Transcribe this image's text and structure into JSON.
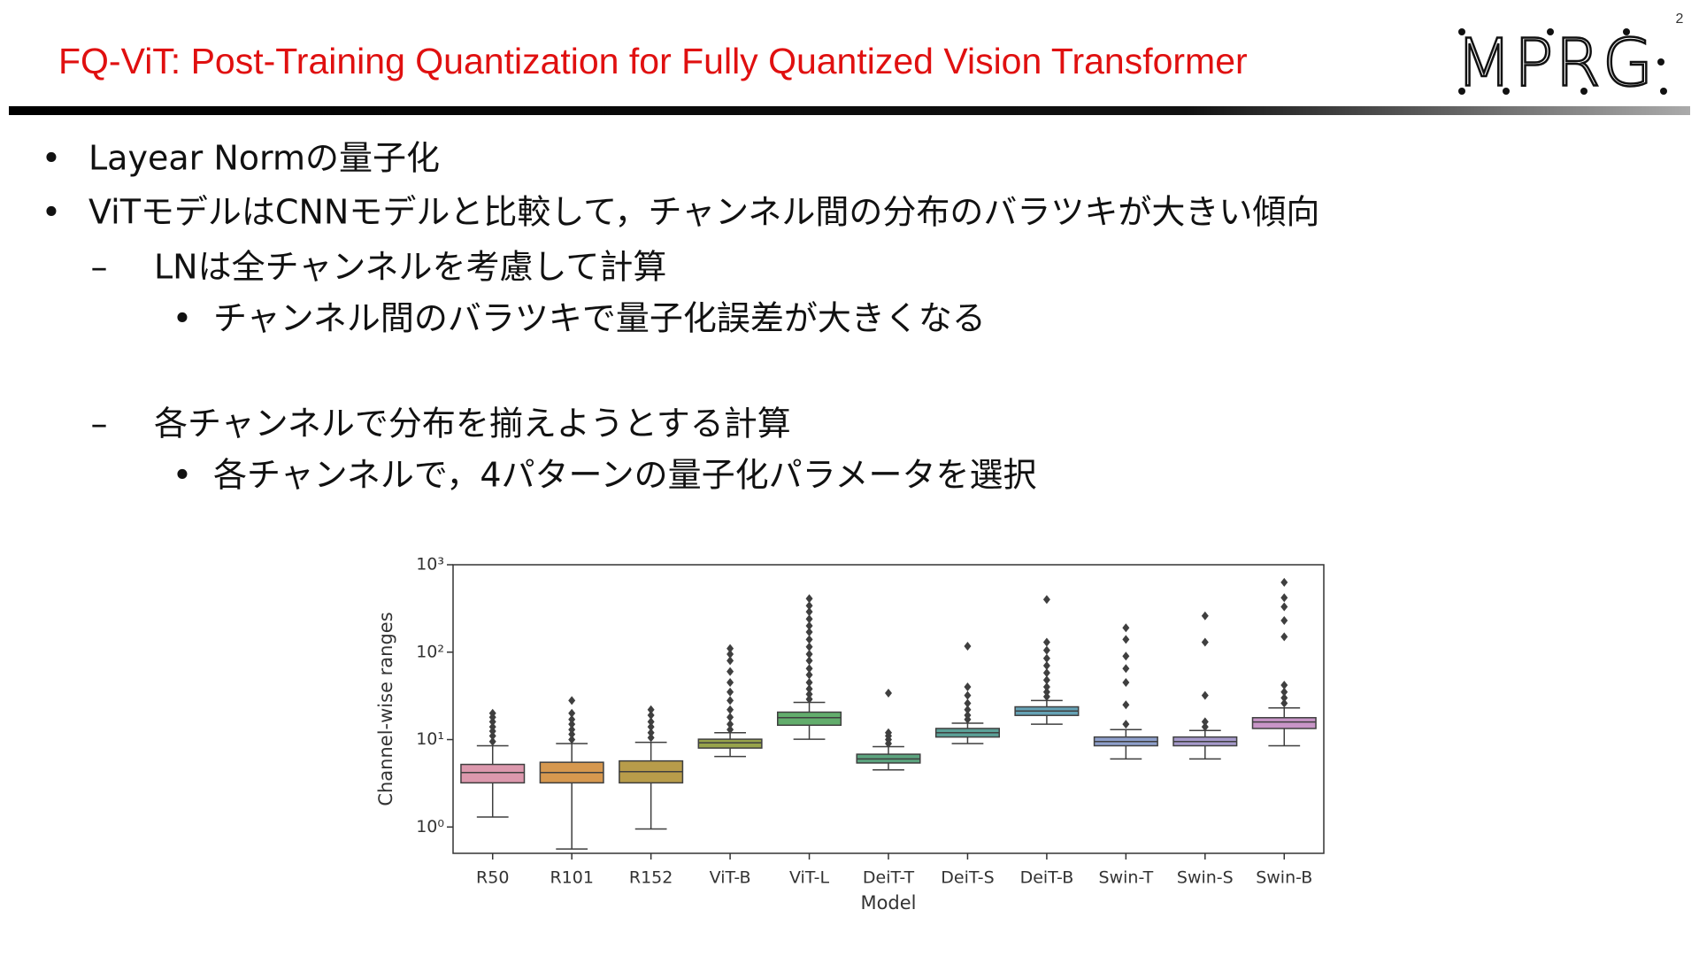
{
  "header": {
    "title": "FQ-ViT: Post-Training Quantization for Fully Quantized Vision Transformer",
    "page_number": "2",
    "logo": "MPRG"
  },
  "bullets": [
    {
      "level": 1,
      "marker": "•",
      "text": "Layear Normの量子化"
    },
    {
      "level": 1,
      "marker": "•",
      "text": "ViTモデルはCNNモデルと比較して，チャンネル間の分布のバラツキが大きい傾向"
    },
    {
      "level": 2,
      "marker": "–",
      "text": "LNは全チャンネルを考慮して計算"
    },
    {
      "level": 3,
      "marker": "•",
      "text": "チャンネル間のバラツキで量子化誤差が大きくなる"
    },
    {
      "level": 2,
      "marker": "–",
      "text": "各チャンネルで分布を揃えようとする計算"
    },
    {
      "level": 3,
      "marker": "•",
      "text": "各チャンネルで，4パターンの量子化パラメータを選択"
    }
  ],
  "chart_data": {
    "type": "box",
    "xlabel": "Model",
    "ylabel": "Channel-wise ranges",
    "yscale": "log",
    "ylim": [
      0.5,
      1000
    ],
    "yticks": [
      {
        "value": 1,
        "label": "10⁰"
      },
      {
        "value": 10,
        "label": "10¹"
      },
      {
        "value": 100,
        "label": "10²"
      },
      {
        "value": 1000,
        "label": "10³"
      }
    ],
    "categories": [
      "R50",
      "R101",
      "R152",
      "ViT-B",
      "ViT-L",
      "DeiT-T",
      "DeiT-S",
      "DeiT-B",
      "Swin-T",
      "Swin-S",
      "Swin-B"
    ],
    "colors": [
      "#dc98ad",
      "#d6984f",
      "#b89c4a",
      "#97a34b",
      "#62ad6c",
      "#5ca47f",
      "#5ba198",
      "#65a2b5",
      "#8e9fcb",
      "#a69acb",
      "#c895c7"
    ],
    "boxes": [
      {
        "whislo": 1.3,
        "q1": 3.2,
        "med": 4.2,
        "q3": 5.2,
        "whishi": 8.5,
        "fliers": [
          9.5,
          11,
          12.5,
          14,
          16,
          18,
          20
        ]
      },
      {
        "whislo": 0.56,
        "q1": 3.2,
        "med": 4.2,
        "q3": 5.5,
        "whishi": 9,
        "fliers": [
          10,
          11.5,
          13,
          15,
          17,
          20,
          28
        ]
      },
      {
        "whislo": 0.95,
        "q1": 3.2,
        "med": 4.3,
        "q3": 5.7,
        "whishi": 9.3,
        "fliers": [
          10.5,
          12,
          14,
          16,
          19,
          22
        ]
      },
      {
        "whislo": 6.4,
        "q1": 8,
        "med": 9.2,
        "q3": 10.1,
        "whishi": 12,
        "fliers": [
          13,
          15,
          18,
          22,
          28,
          35,
          45,
          60,
          80,
          95,
          110
        ]
      },
      {
        "whislo": 10.1,
        "q1": 14.6,
        "med": 17.8,
        "q3": 20.6,
        "whishi": 26.6,
        "fliers": [
          29,
          33,
          38,
          45,
          55,
          65,
          80,
          95,
          115,
          140,
          170,
          200,
          240,
          290,
          340,
          410
        ]
      },
      {
        "whislo": 4.5,
        "q1": 5.4,
        "med": 6,
        "q3": 6.8,
        "whishi": 8.3,
        "fliers": [
          9,
          10,
          11,
          12,
          34
        ]
      },
      {
        "whislo": 9,
        "q1": 10.7,
        "med": 12,
        "q3": 13.4,
        "whishi": 15.4,
        "fliers": [
          17,
          19,
          22,
          26,
          32,
          40,
          117
        ]
      },
      {
        "whislo": 15,
        "q1": 18.9,
        "med": 21.2,
        "q3": 23.7,
        "whishi": 28,
        "fliers": [
          31,
          35,
          40,
          48,
          58,
          70,
          85,
          105,
          130,
          400
        ]
      },
      {
        "whislo": 6,
        "q1": 8.5,
        "med": 9.5,
        "q3": 10.7,
        "whishi": 13,
        "fliers": [
          15,
          25,
          45,
          65,
          90,
          140,
          190
        ]
      },
      {
        "whislo": 6,
        "q1": 8.5,
        "med": 9.5,
        "q3": 10.7,
        "whishi": 12.7,
        "fliers": [
          14,
          16,
          32,
          130,
          260
        ]
      },
      {
        "whislo": 8.5,
        "q1": 13.4,
        "med": 15.9,
        "q3": 17.8,
        "whishi": 23,
        "fliers": [
          26,
          30,
          35,
          42,
          150,
          230,
          330,
          420,
          630
        ]
      }
    ]
  }
}
